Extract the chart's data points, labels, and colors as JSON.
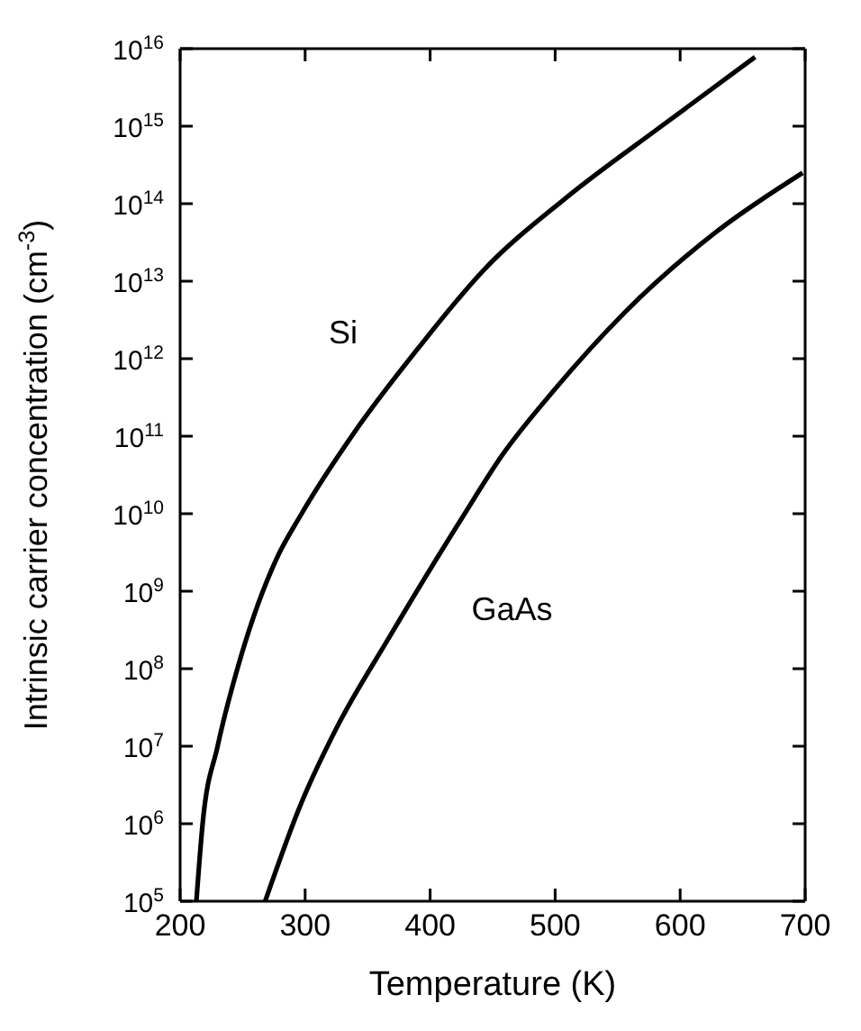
{
  "chart_data": {
    "type": "line",
    "xlabel": "Temperature (K)",
    "ylabel": "Intrinsic carrier concentration (cm$^{-3}$)",
    "log": "y",
    "xlim": [
      200,
      700
    ],
    "xticks": [
      200,
      300,
      400,
      500,
      600,
      700
    ],
    "ylim": [
      100000.0,
      1e+16
    ],
    "yticks": [
      {
        "value": 100000.0,
        "label": "10$^{5}$"
      },
      {
        "value": 1000000.0,
        "label": "10$^{6}$"
      },
      {
        "value": 10000000.0,
        "label": "10$^{7}$"
      },
      {
        "value": 100000000.0,
        "label": "10$^{8}$"
      },
      {
        "value": 1000000000.0,
        "label": "10$^{9}$"
      },
      {
        "value": 10000000000.0,
        "label": "10$^{10}$"
      },
      {
        "value": 100000000000.0,
        "label": "10$^{11}$"
      },
      {
        "value": 1000000000000.0,
        "label": "10$^{12}$"
      },
      {
        "value": 10000000000000.0,
        "label": "10$^{13}$"
      },
      {
        "value": 100000000000000.0,
        "label": "10$^{14}$"
      },
      {
        "value": 1000000000000000.0,
        "label": "10$^{15}$"
      },
      {
        "value": 1e+16,
        "label": "10$^{16}$"
      }
    ],
    "marker": "none",
    "line_style": "solid",
    "series": [
      {
        "name": "Si",
        "color": "#000000",
        "x": [
          213,
          218,
          230,
          249,
          277,
          296,
          339,
          391,
          443,
          509,
          585,
          660
        ],
        "values": [
          100000.0,
          1000000.0,
          10000000.0,
          150000000.0,
          2600000000.0,
          9300000000.0,
          110000000000.0,
          1400000000000.0,
          14000000000000.0,
          120000000000000.0,
          1000000000000000.0,
          7800000000000000.0
        ]
      },
      {
        "name": "GaAs",
        "color": "#000000",
        "x": [
          268,
          296,
          325,
          367,
          405,
          426,
          457,
          499,
          556,
          627,
          698
        ],
        "values": [
          100000.0,
          1700000.0,
          17000000.0,
          250000000.0,
          2600000000.0,
          9100000000.0,
          55000000000.0,
          390000000000.0,
          4000000000000.0,
          41000000000000.0,
          250000000000000.0
        ]
      }
    ]
  }
}
